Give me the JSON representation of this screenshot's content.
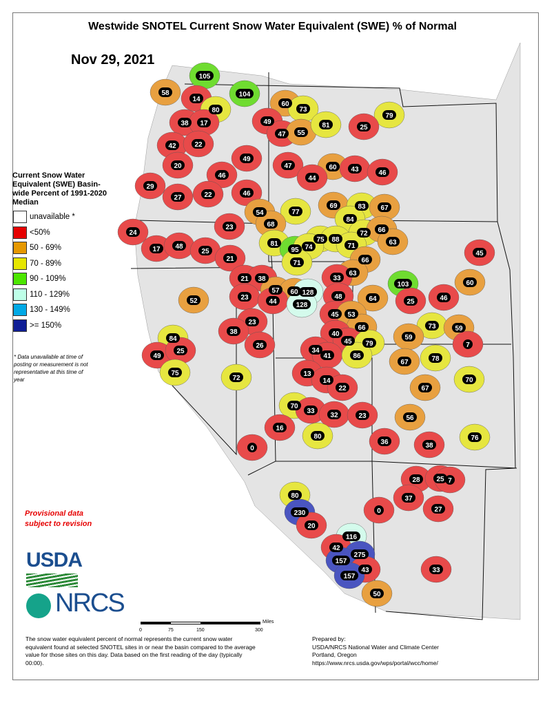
{
  "title": "Westwide SNOTEL Current Snow Water Equivalent (SWE) % of Normal",
  "date": "Nov 29, 2021",
  "legend": {
    "title": "Current Snow Water Equivalent (SWE) Basin-wide Percent of 1991-2020 Median",
    "items": [
      {
        "label": "unavailable *",
        "color": "#ffffff"
      },
      {
        "label": "<50%",
        "color": "#e60000"
      },
      {
        "label": "50 - 69%",
        "color": "#e69800"
      },
      {
        "label": "70 - 89%",
        "color": "#e6e600"
      },
      {
        "label": "90 - 109%",
        "color": "#4ce600"
      },
      {
        "label": "110 - 129%",
        "color": "#beffe8"
      },
      {
        "label": "130 - 149%",
        "color": "#00a9e6"
      },
      {
        "label": ">= 150%",
        "color": "#0f1e96"
      }
    ],
    "note": "* Data unavailable at time of posting or measurement is not representative at this time of year"
  },
  "provisional": "Provisional data subject to revision",
  "logos": {
    "usda": "USDA",
    "nrcs": "NRCS"
  },
  "scale": {
    "unit": "Miles",
    "ticks": [
      "0",
      "75",
      "150",
      "300"
    ]
  },
  "description": "The snow water equivalent percent of normal represents the current snow water equivalent found at selected SNOTEL sites in or near the basin compared to the average value for those sites on this day. Data based on the first reading of the day (typically 00:00).",
  "prepared": {
    "label": "Prepared by:",
    "org": "USDA/NRCS National Water and Climate Center",
    "place": "Portland, Oregon",
    "url": "https://www.nrcs.usda.gov/wps/portal/wcc/home/"
  },
  "basin_values": [
    105,
    104,
    58,
    14,
    80,
    60,
    73,
    79,
    38,
    17,
    49,
    47,
    55,
    81,
    25,
    42,
    22,
    49,
    20,
    47,
    60,
    43,
    46,
    46,
    44,
    29,
    27,
    22,
    46,
    77,
    69,
    83,
    67,
    54,
    84,
    68,
    72,
    66,
    24,
    23,
    63,
    81,
    75,
    88,
    17,
    48,
    25,
    95,
    74,
    71,
    45,
    21,
    66,
    71,
    63,
    33,
    103,
    60,
    21,
    38,
    57,
    60,
    128,
    52,
    23,
    44,
    48,
    64,
    25,
    46,
    128,
    23,
    45,
    53,
    66,
    73,
    59,
    38,
    40,
    45,
    79,
    59,
    7,
    84,
    26,
    49,
    25,
    34,
    41,
    86,
    67,
    78,
    70,
    75,
    72,
    13,
    14,
    22,
    67,
    70,
    33,
    32,
    23,
    56,
    76,
    16,
    80,
    36,
    38,
    0,
    28,
    25,
    7,
    37,
    27,
    80,
    230,
    20,
    0,
    116,
    42,
    275,
    157,
    43,
    157,
    33,
    50
  ]
}
